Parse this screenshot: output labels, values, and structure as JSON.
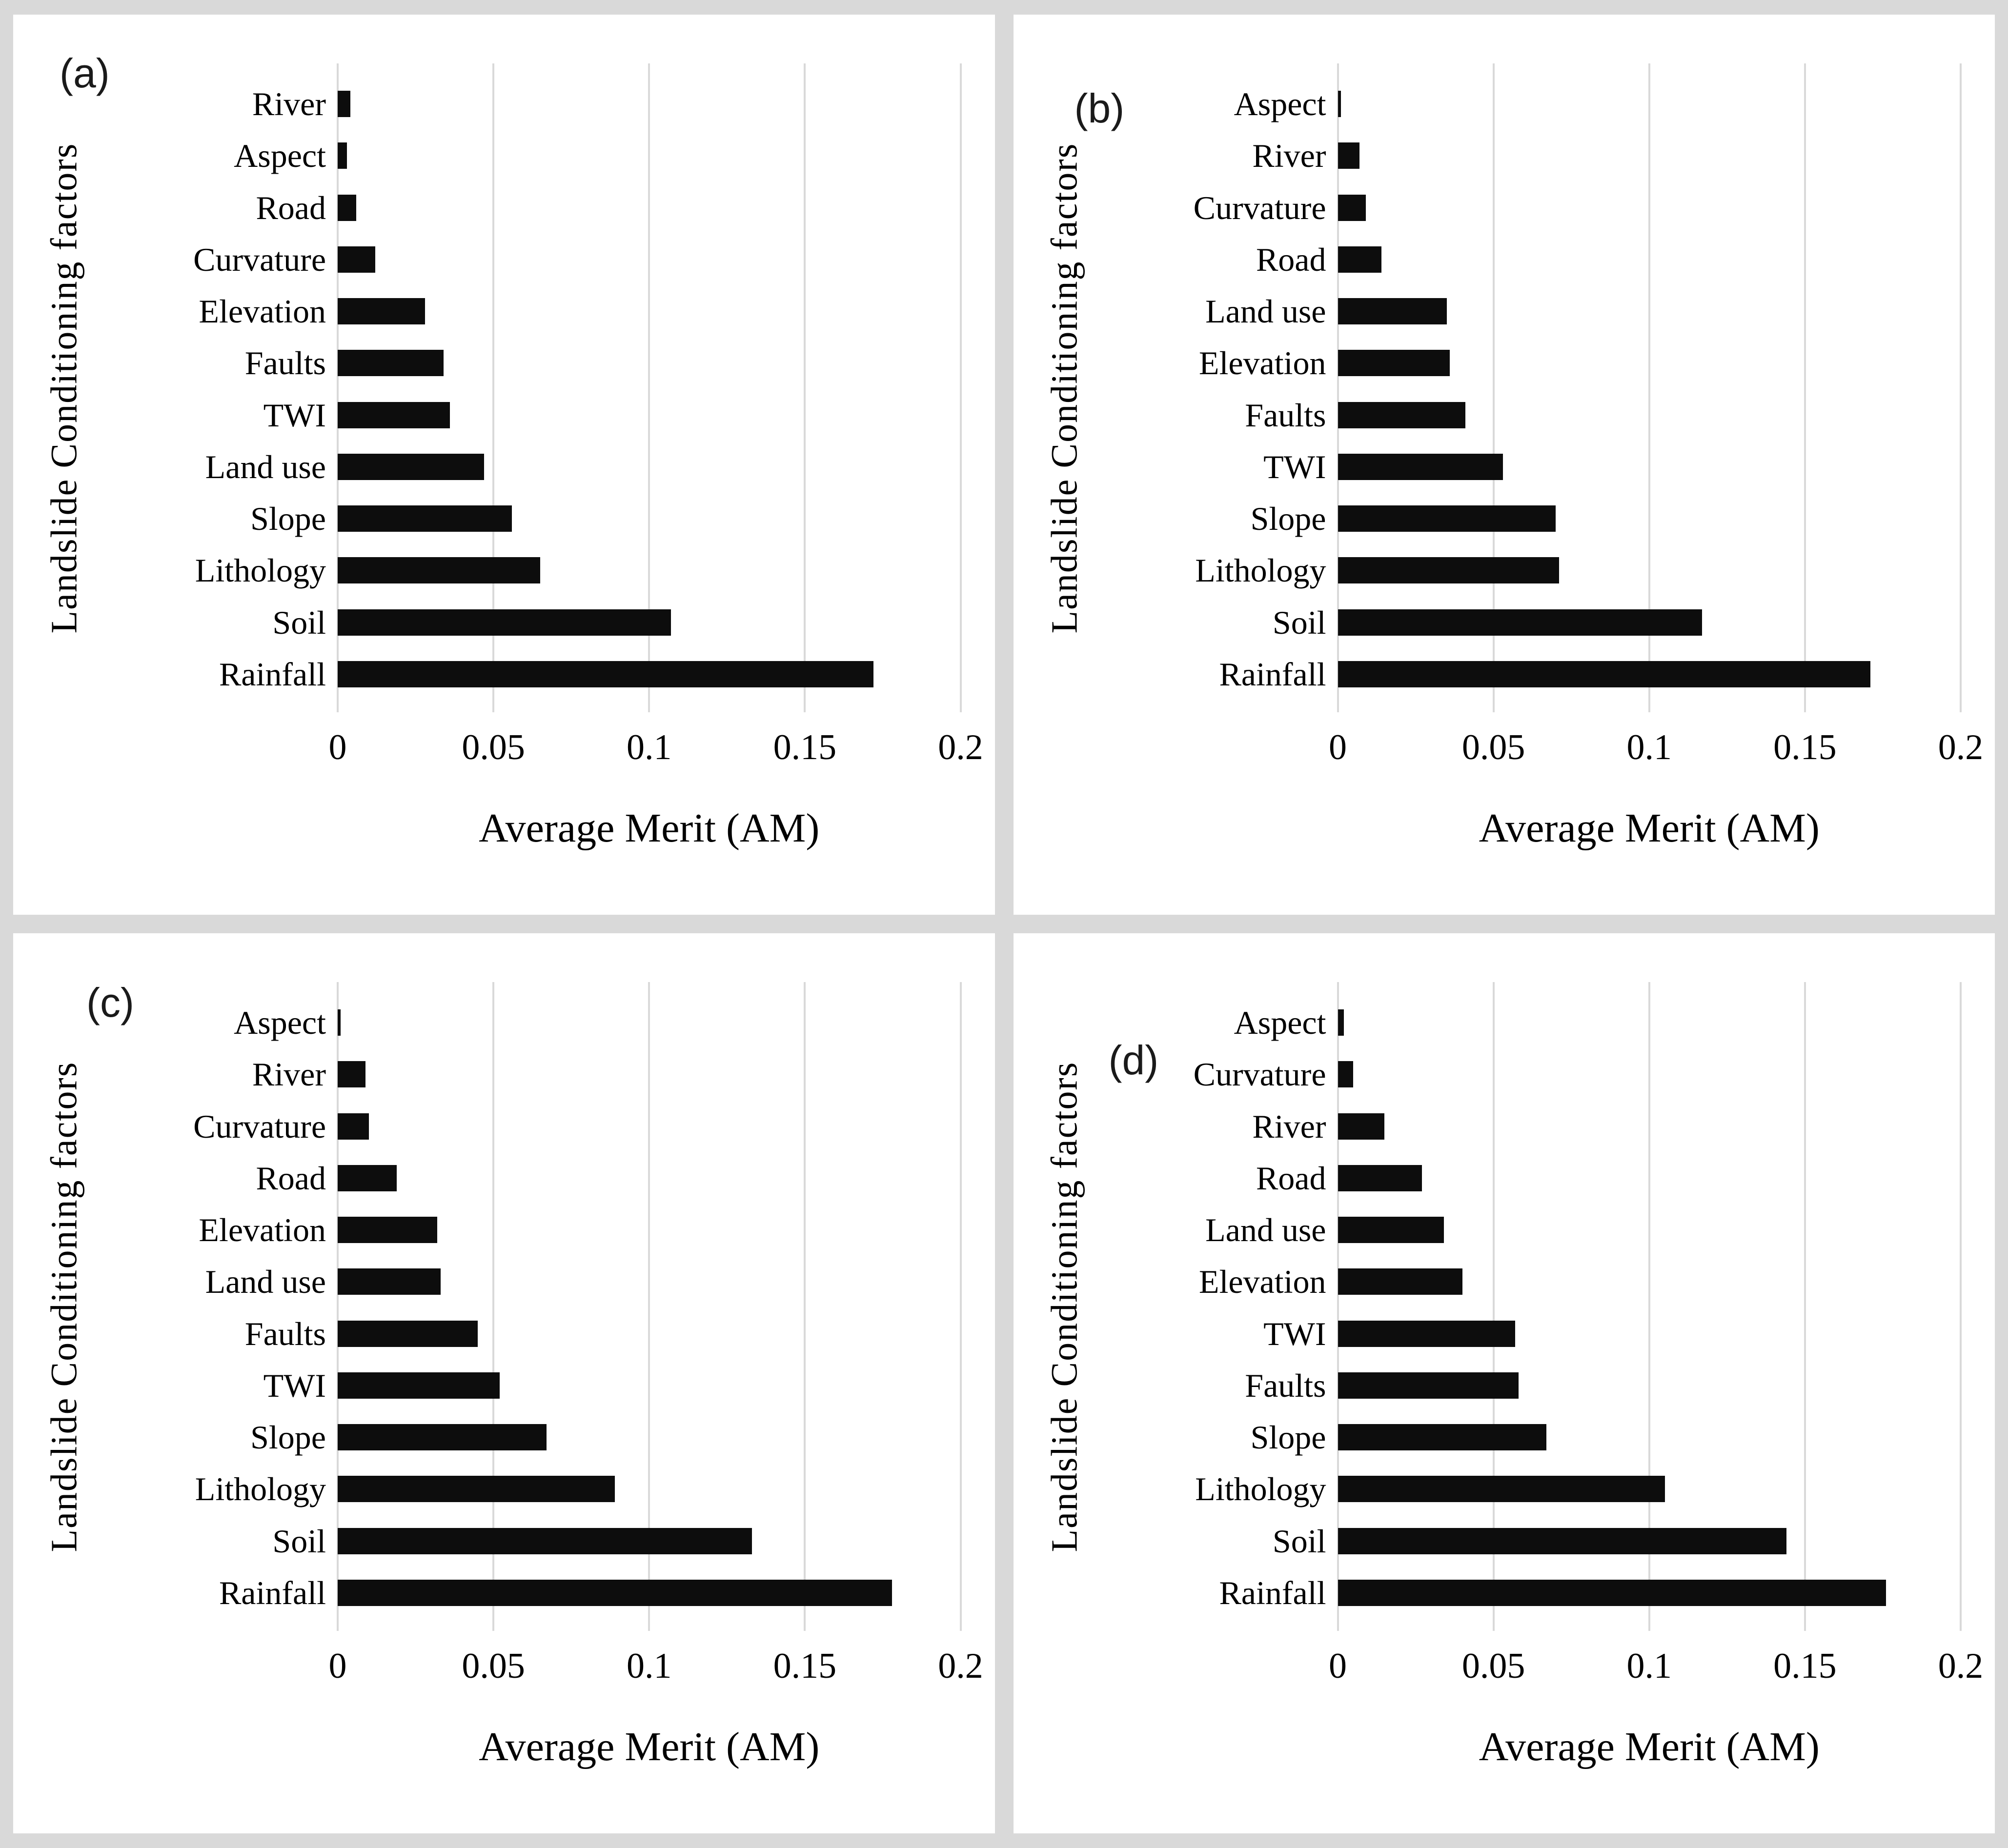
{
  "page": {
    "background_color": "#d9d9d9",
    "panel_background_color": "#ffffff",
    "bar_color": "#0d0d0d",
    "gridline_color": "#d9d9d9"
  },
  "chart_data": [
    {
      "type": "bar",
      "orientation": "horizontal",
      "panel_label": "(a)",
      "xlabel": "Average Merit (AM)",
      "ylabel": "Landslide Conditioning factors",
      "xlim": [
        0,
        0.2
      ],
      "x_ticks": [
        0,
        0.05,
        0.1,
        0.15,
        0.2
      ],
      "x_tick_labels": [
        "0",
        "0.05",
        "0.1",
        "0.15",
        "0.2"
      ],
      "grid": "vertical-gridlines-on",
      "legend": "none",
      "categories": [
        "River",
        "Aspect",
        "Road",
        "Curvature",
        "Elevation",
        "Faults",
        "TWI",
        "Land use",
        "Slope",
        "Lithology",
        "Soil",
        "Rainfall"
      ],
      "values": [
        0.004,
        0.003,
        0.006,
        0.012,
        0.028,
        0.034,
        0.036,
        0.047,
        0.056,
        0.065,
        0.107,
        0.172
      ]
    },
    {
      "type": "bar",
      "orientation": "horizontal",
      "panel_label": "(b)",
      "xlabel": "Average Merit (AM)",
      "ylabel": "Landslide Conditioning factors",
      "xlim": [
        0,
        0.2
      ],
      "x_ticks": [
        0,
        0.05,
        0.1,
        0.15,
        0.2
      ],
      "x_tick_labels": [
        "0",
        "0.05",
        "0.1",
        "0.15",
        "0.2"
      ],
      "grid": "vertical-gridlines-on",
      "legend": "none",
      "categories": [
        "Aspect",
        "River",
        "Curvature",
        "Road",
        "Land use",
        "Elevation",
        "Faults",
        "TWI",
        "Slope",
        "Lithology",
        "Soil",
        "Rainfall"
      ],
      "values": [
        0.001,
        0.007,
        0.009,
        0.014,
        0.035,
        0.036,
        0.041,
        0.053,
        0.07,
        0.071,
        0.117,
        0.171
      ]
    },
    {
      "type": "bar",
      "orientation": "horizontal",
      "panel_label": "(c)",
      "xlabel": "Average Merit (AM)",
      "ylabel": "Landslide Conditioning factors",
      "xlim": [
        0,
        0.2
      ],
      "x_ticks": [
        0,
        0.05,
        0.1,
        0.15,
        0.2
      ],
      "x_tick_labels": [
        "0",
        "0.05",
        "0.1",
        "0.15",
        "0.2"
      ],
      "grid": "vertical-gridlines-on",
      "legend": "none",
      "categories": [
        "Aspect",
        "River",
        "Curvature",
        "Road",
        "Elevation",
        "Land use",
        "Faults",
        "TWI",
        "Slope",
        "Lithology",
        "Soil",
        "Rainfall"
      ],
      "values": [
        0.001,
        0.009,
        0.01,
        0.019,
        0.032,
        0.033,
        0.045,
        0.052,
        0.067,
        0.089,
        0.133,
        0.178
      ]
    },
    {
      "type": "bar",
      "orientation": "horizontal",
      "panel_label": "(d)",
      "xlabel": "Average Merit (AM)",
      "ylabel": "Landslide Conditioning factors",
      "xlim": [
        0,
        0.2
      ],
      "x_ticks": [
        0,
        0.05,
        0.1,
        0.15,
        0.2
      ],
      "x_tick_labels": [
        "0",
        "0.05",
        "0.1",
        "0.15",
        "0.2"
      ],
      "grid": "vertical-gridlines-on",
      "legend": "none",
      "categories": [
        "Aspect",
        "Curvature",
        "River",
        "Road",
        "Land use",
        "Elevation",
        "TWI",
        "Faults",
        "Slope",
        "Lithology",
        "Soil",
        "Rainfall"
      ],
      "values": [
        0.002,
        0.005,
        0.015,
        0.027,
        0.034,
        0.04,
        0.057,
        0.058,
        0.067,
        0.105,
        0.144,
        0.176
      ]
    }
  ]
}
